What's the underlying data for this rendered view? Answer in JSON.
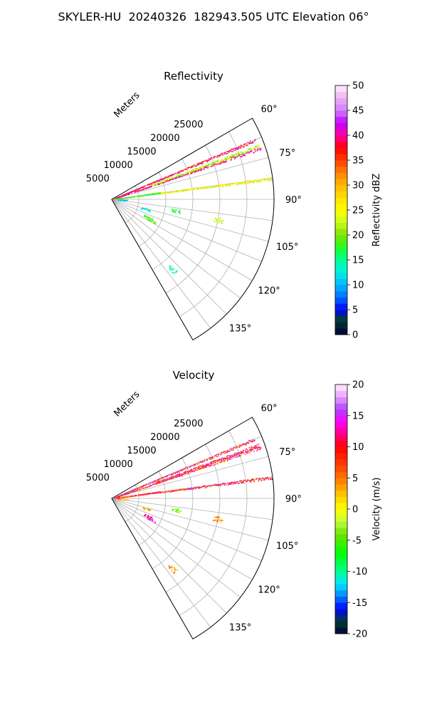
{
  "figure": {
    "suptitle": "SKYLER-HU  20240326  182943.505 UTC Elevation 06°"
  },
  "chart_data": [
    {
      "type": "polar-ppi",
      "title": "Reflectivity",
      "radial_axis_label": "Meters",
      "radial_ticks": [
        5000,
        10000,
        15000,
        20000,
        25000
      ],
      "radial_range": [
        0,
        30000
      ],
      "angular_range_deg": [
        60,
        150
      ],
      "angular_ticks": [
        "60°",
        "75°",
        "90°",
        "105°",
        "120°",
        "135°"
      ],
      "grid": true,
      "colorbar": {
        "label": "Reflectivity dBZ",
        "range": [
          0,
          50
        ],
        "ticks": [
          0,
          5,
          10,
          15,
          20,
          25,
          30,
          35,
          40,
          45,
          50
        ]
      },
      "rays": [
        {
          "azimuth": 67.5,
          "range_from": 500,
          "range_to": 28800,
          "value": 38
        },
        {
          "azimuth": 71.0,
          "range_from": 500,
          "range_to": 29200,
          "value": 40
        },
        {
          "azimuth": 70.0,
          "range_from": 8000,
          "range_to": 29000,
          "value": 22
        },
        {
          "azimuth": 82.5,
          "range_from": 9000,
          "range_to": 30000,
          "value": 25
        },
        {
          "azimuth": 82.0,
          "range_from": 500,
          "range_to": 9000,
          "value": 18
        }
      ],
      "clusters": [
        {
          "azimuth": 116,
          "range": 7500,
          "value": 18
        },
        {
          "azimuth": 118,
          "range": 8200,
          "value": 19
        },
        {
          "azimuth": 100,
          "range": 12000,
          "value": 17
        },
        {
          "azimuth": 101,
          "range": 20000,
          "value": 22
        },
        {
          "azimuth": 139,
          "range": 17000,
          "value": 14
        },
        {
          "azimuth": 106,
          "range": 6500,
          "value": 12
        },
        {
          "azimuth": 93,
          "range": 2000,
          "value": 11
        }
      ]
    },
    {
      "type": "polar-ppi",
      "title": "Velocity",
      "radial_axis_label": "Meters",
      "radial_ticks": [
        5000,
        10000,
        15000,
        20000,
        25000
      ],
      "radial_range": [
        0,
        30000
      ],
      "angular_range_deg": [
        60,
        150
      ],
      "angular_ticks": [
        "60°",
        "75°",
        "90°",
        "105°",
        "120°",
        "135°"
      ],
      "grid": true,
      "colorbar": {
        "label": "Velocity (m/s)",
        "range": [
          -20,
          20
        ],
        "ticks": [
          -20,
          -15,
          -10,
          -5,
          0,
          5,
          10,
          15,
          20
        ]
      },
      "rays": [
        {
          "azimuth": 67.5,
          "range_from": 500,
          "range_to": 28800,
          "value": 10
        },
        {
          "azimuth": 71.0,
          "range_from": 500,
          "range_to": 29200,
          "value": 9
        },
        {
          "azimuth": 70.0,
          "range_from": 8000,
          "range_to": 29000,
          "value": 11
        },
        {
          "azimuth": 82.5,
          "range_from": 9000,
          "range_to": 30000,
          "value": 10
        },
        {
          "azimuth": 82.0,
          "range_from": 500,
          "range_to": 9000,
          "value": 8
        }
      ],
      "clusters": [
        {
          "azimuth": 116,
          "range": 7500,
          "value": 12
        },
        {
          "azimuth": 118,
          "range": 8200,
          "value": 14
        },
        {
          "azimuth": 100,
          "range": 12000,
          "value": -4
        },
        {
          "azimuth": 101,
          "range": 20000,
          "value": 3
        },
        {
          "azimuth": 139,
          "range": 17000,
          "value": 4
        },
        {
          "azimuth": 106,
          "range": 6500,
          "value": 2
        },
        {
          "azimuth": 93,
          "range": 2000,
          "value": 1
        }
      ]
    }
  ]
}
